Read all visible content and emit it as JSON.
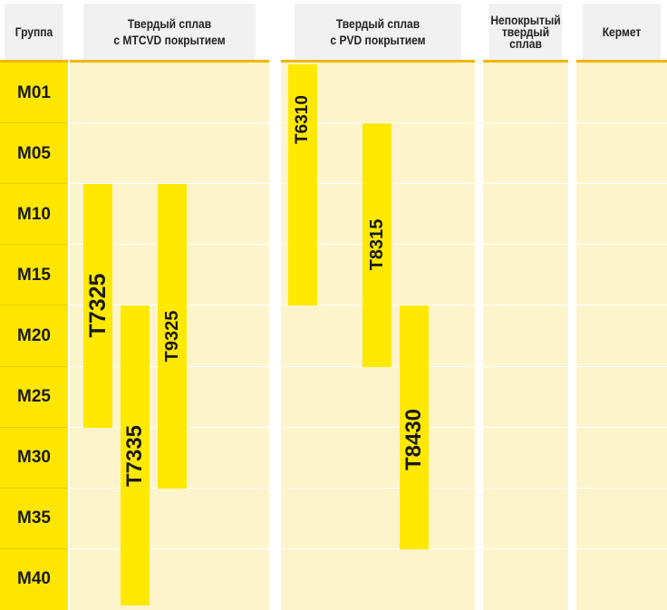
{
  "headers": {
    "group": "Группа",
    "mtcvd_line1": "Твердый сплав",
    "mtcvd_line2": "с MTCVD покрытием",
    "pvd_line1": "Твердый сплав",
    "pvd_line2": "с PVD покрытием",
    "uncoated_line1": "Непокрытый",
    "uncoated_line2": "твердый",
    "uncoated_line3": "сплав",
    "cermet": "Кермет"
  },
  "chart_data": {
    "type": "table",
    "title": "",
    "xlabel": "",
    "ylabel": "Группа",
    "categories": [
      "M01",
      "M05",
      "M10",
      "M15",
      "M20",
      "M25",
      "M30",
      "M35",
      "M40"
    ],
    "series": [
      {
        "name": "T7325",
        "column": "Твердый сплав с MTCVD покрытием",
        "from": "M10",
        "to": "M25"
      },
      {
        "name": "T7335",
        "column": "Твердый сплав с MTCVD покрытием",
        "from": "M20",
        "to": "M40"
      },
      {
        "name": "T9325",
        "column": "Твердый сплав с MTCVD покрытием",
        "from": "M10",
        "to": "M30"
      },
      {
        "name": "T6310",
        "column": "Твердый сплав с PVD покрытием",
        "from": "M01",
        "to": "M15"
      },
      {
        "name": "T8315",
        "column": "Твердый сплав с PVD покрытием",
        "from": "M05",
        "to": "M20"
      },
      {
        "name": "T8430",
        "column": "Твердый сплав с PVD покрытием",
        "from": "M20",
        "to": "M35"
      }
    ],
    "colors": {
      "group": "#ffe600",
      "bar": "#ffe900",
      "cell": "#fdf4cc",
      "header_bg": "#f1f1f2",
      "header_rule": "#f4b400"
    }
  }
}
